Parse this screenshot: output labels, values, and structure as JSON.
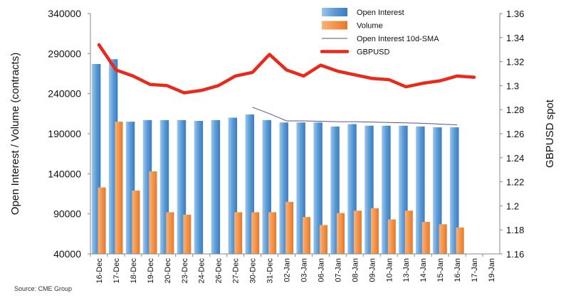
{
  "chart_data": {
    "type": "bar",
    "categories": [
      "16-Dec",
      "17-Dec",
      "18-Dec",
      "19-Dec",
      "20-Dec",
      "23-Dec",
      "24-Dec",
      "26-Dec",
      "27-Dec",
      "30-Dec",
      "31-Dec",
      "02-Jan",
      "03-Jan",
      "06-Jan",
      "07-Jan",
      "08-Jan",
      "09-Jan",
      "10-Jan",
      "13-Jan",
      "14-Jan",
      "15-Jan",
      "16-Jan",
      "17-Jan",
      "19-Jan"
    ],
    "series": [
      {
        "name": "Open Interest",
        "kind": "bar",
        "axis": "left",
        "color": "#5b9bd5",
        "values": [
          277000,
          283000,
          205000,
          207000,
          207000,
          207000,
          206000,
          207000,
          210000,
          214000,
          207000,
          204000,
          204000,
          204000,
          199000,
          202000,
          200000,
          200000,
          200000,
          199000,
          198000,
          198000,
          null,
          null
        ]
      },
      {
        "name": "Volume",
        "kind": "bar",
        "axis": "left",
        "color": "#f4954a",
        "values": [
          123000,
          205000,
          119000,
          143000,
          92000,
          89000,
          null,
          null,
          92000,
          92000,
          92000,
          105000,
          86000,
          76000,
          91000,
          94000,
          97000,
          83000,
          94000,
          80000,
          77000,
          73000,
          null,
          null
        ]
      },
      {
        "name": "Open Interest 10d-SMA",
        "kind": "line",
        "axis": "left",
        "color": "#5a4e9b",
        "values": [
          null,
          null,
          null,
          null,
          null,
          null,
          null,
          null,
          null,
          223000,
          215000,
          206000,
          206000,
          205500,
          205000,
          205000,
          204500,
          204000,
          203500,
          203000,
          202000,
          201000,
          null,
          null
        ]
      },
      {
        "name": "GBPUSD",
        "kind": "line",
        "axis": "right",
        "color": "#e8291b",
        "values": [
          1.334,
          1.313,
          1.308,
          1.301,
          1.3,
          1.294,
          1.296,
          1.3,
          1.308,
          1.311,
          1.326,
          1.313,
          1.308,
          1.317,
          1.312,
          1.309,
          1.306,
          1.305,
          1.299,
          1.302,
          1.304,
          1.308,
          1.307,
          null
        ]
      }
    ],
    "y_left": {
      "label": "Open Interest / Volume (contracts)",
      "range": [
        40000,
        340000
      ],
      "ticks": [
        "40000",
        "90000",
        "140000",
        "190000",
        "240000",
        "290000",
        "340000"
      ]
    },
    "y_right": {
      "label": "GBPUSD spot",
      "range": [
        1.16,
        1.36
      ],
      "ticks": [
        "1.16",
        "1.18",
        "1.2",
        "1.22",
        "1.24",
        "1.26",
        "1.28",
        "1.3",
        "1.32",
        "1.34",
        "1.36"
      ]
    },
    "grid": false,
    "legend_placement": "top-center"
  },
  "source": "Source: CME Group"
}
